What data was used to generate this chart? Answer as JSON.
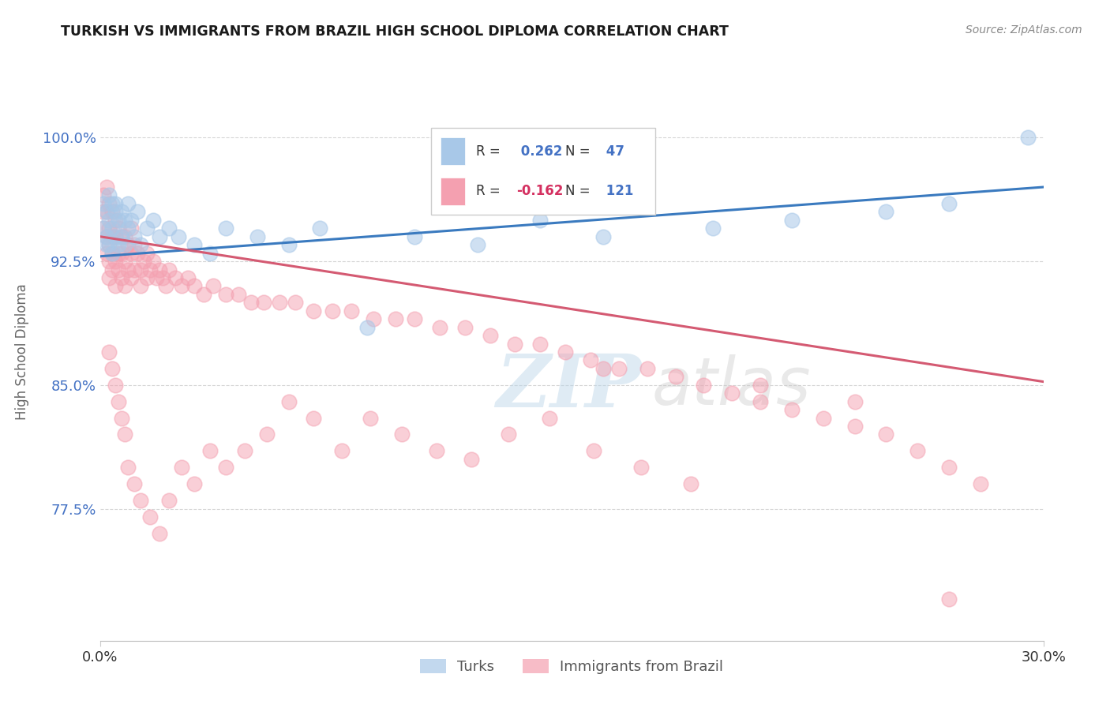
{
  "title": "TURKISH VS IMMIGRANTS FROM BRAZIL HIGH SCHOOL DIPLOMA CORRELATION CHART",
  "source_text": "Source: ZipAtlas.com",
  "ylabel": "High School Diploma",
  "xlim": [
    0.0,
    0.3
  ],
  "ylim": [
    0.695,
    1.045
  ],
  "xticks": [
    0.0,
    0.3
  ],
  "xticklabels": [
    "0.0%",
    "30.0%"
  ],
  "yticks": [
    0.775,
    0.85,
    0.925,
    1.0
  ],
  "yticklabels": [
    "77.5%",
    "85.0%",
    "92.5%",
    "100.0%"
  ],
  "blue_R": 0.262,
  "blue_N": 47,
  "pink_R": -0.162,
  "pink_N": 121,
  "blue_color": "#a8c8e8",
  "pink_color": "#f4a0b0",
  "blue_line_color": "#3a7abf",
  "pink_line_color": "#d45a72",
  "legend_label_blue": "Turks",
  "legend_label_pink": "Immigrants from Brazil",
  "watermark_zip": "ZIP",
  "watermark_atlas": "atlas",
  "blue_trend_x": [
    0.0,
    0.3
  ],
  "blue_trend_y": [
    0.928,
    0.97
  ],
  "pink_trend_x": [
    0.0,
    0.3
  ],
  "pink_trend_y": [
    0.94,
    0.852
  ],
  "blue_scatter_x": [
    0.001,
    0.001,
    0.002,
    0.002,
    0.002,
    0.003,
    0.003,
    0.003,
    0.004,
    0.004,
    0.004,
    0.005,
    0.005,
    0.005,
    0.006,
    0.006,
    0.007,
    0.007,
    0.008,
    0.008,
    0.009,
    0.009,
    0.01,
    0.011,
    0.012,
    0.013,
    0.015,
    0.017,
    0.019,
    0.022,
    0.025,
    0.03,
    0.035,
    0.04,
    0.05,
    0.06,
    0.07,
    0.085,
    0.1,
    0.12,
    0.14,
    0.16,
    0.195,
    0.22,
    0.25,
    0.27,
    0.295
  ],
  "blue_scatter_y": [
    0.96,
    0.945,
    0.955,
    0.94,
    0.935,
    0.965,
    0.95,
    0.935,
    0.96,
    0.945,
    0.93,
    0.955,
    0.94,
    0.96,
    0.95,
    0.935,
    0.955,
    0.94,
    0.95,
    0.935,
    0.96,
    0.945,
    0.95,
    0.94,
    0.955,
    0.935,
    0.945,
    0.95,
    0.94,
    0.945,
    0.94,
    0.935,
    0.93,
    0.945,
    0.94,
    0.935,
    0.945,
    0.885,
    0.94,
    0.935,
    0.95,
    0.94,
    0.945,
    0.95,
    0.955,
    0.96,
    1.0
  ],
  "pink_scatter_x": [
    0.001,
    0.001,
    0.001,
    0.002,
    0.002,
    0.002,
    0.002,
    0.003,
    0.003,
    0.003,
    0.003,
    0.003,
    0.004,
    0.004,
    0.004,
    0.004,
    0.005,
    0.005,
    0.005,
    0.005,
    0.006,
    0.006,
    0.006,
    0.007,
    0.007,
    0.007,
    0.008,
    0.008,
    0.008,
    0.009,
    0.009,
    0.01,
    0.01,
    0.01,
    0.011,
    0.011,
    0.012,
    0.013,
    0.013,
    0.014,
    0.015,
    0.015,
    0.016,
    0.017,
    0.018,
    0.019,
    0.02,
    0.021,
    0.022,
    0.024,
    0.026,
    0.028,
    0.03,
    0.033,
    0.036,
    0.04,
    0.044,
    0.048,
    0.052,
    0.057,
    0.062,
    0.068,
    0.074,
    0.08,
    0.087,
    0.094,
    0.1,
    0.108,
    0.116,
    0.124,
    0.132,
    0.14,
    0.148,
    0.156,
    0.165,
    0.174,
    0.183,
    0.192,
    0.201,
    0.21,
    0.22,
    0.23,
    0.24,
    0.25,
    0.26,
    0.27,
    0.28,
    0.003,
    0.004,
    0.005,
    0.006,
    0.007,
    0.008,
    0.009,
    0.011,
    0.013,
    0.016,
    0.019,
    0.022,
    0.026,
    0.03,
    0.035,
    0.04,
    0.046,
    0.053,
    0.06,
    0.068,
    0.077,
    0.086,
    0.096,
    0.107,
    0.118,
    0.13,
    0.143,
    0.157,
    0.172,
    0.188,
    0.16,
    0.21,
    0.24,
    0.27
  ],
  "pink_scatter_y": [
    0.965,
    0.955,
    0.945,
    0.97,
    0.955,
    0.94,
    0.93,
    0.96,
    0.945,
    0.935,
    0.925,
    0.915,
    0.955,
    0.94,
    0.93,
    0.92,
    0.95,
    0.94,
    0.925,
    0.91,
    0.945,
    0.93,
    0.92,
    0.94,
    0.93,
    0.915,
    0.94,
    0.925,
    0.91,
    0.935,
    0.92,
    0.945,
    0.93,
    0.915,
    0.935,
    0.92,
    0.93,
    0.92,
    0.91,
    0.925,
    0.93,
    0.915,
    0.92,
    0.925,
    0.915,
    0.92,
    0.915,
    0.91,
    0.92,
    0.915,
    0.91,
    0.915,
    0.91,
    0.905,
    0.91,
    0.905,
    0.905,
    0.9,
    0.9,
    0.9,
    0.9,
    0.895,
    0.895,
    0.895,
    0.89,
    0.89,
    0.89,
    0.885,
    0.885,
    0.88,
    0.875,
    0.875,
    0.87,
    0.865,
    0.86,
    0.86,
    0.855,
    0.85,
    0.845,
    0.84,
    0.835,
    0.83,
    0.825,
    0.82,
    0.81,
    0.8,
    0.79,
    0.87,
    0.86,
    0.85,
    0.84,
    0.83,
    0.82,
    0.8,
    0.79,
    0.78,
    0.77,
    0.76,
    0.78,
    0.8,
    0.79,
    0.81,
    0.8,
    0.81,
    0.82,
    0.84,
    0.83,
    0.81,
    0.83,
    0.82,
    0.81,
    0.805,
    0.82,
    0.83,
    0.81,
    0.8,
    0.79,
    0.86,
    0.85,
    0.84,
    0.72
  ]
}
